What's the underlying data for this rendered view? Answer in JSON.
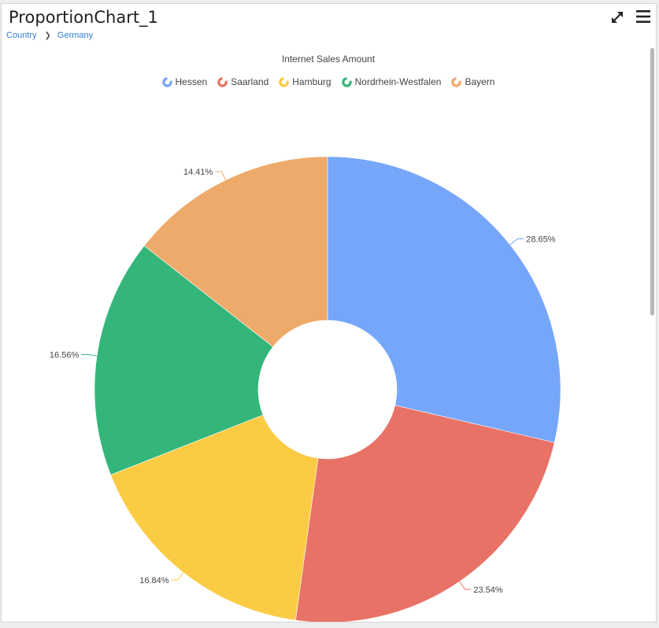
{
  "header": {
    "title": "ProportionChart_1",
    "breadcrumb": [
      "Country",
      "Germany"
    ],
    "expand_icon": "expand-arrows-icon",
    "menu_icon": "hamburger-menu-icon"
  },
  "chart_data": {
    "type": "pie",
    "donut": true,
    "title": "Internet Sales Amount",
    "legend_position": "top-center",
    "categories": [
      "Hessen",
      "Saarland",
      "Hamburg",
      "Nordrhein-Westfalen",
      "Bayern"
    ],
    "values": [
      28.65,
      23.54,
      16.84,
      16.56,
      14.41
    ],
    "labels": [
      "28.65%",
      "23.54%",
      "16.84%",
      "16.56%",
      "14.41%"
    ],
    "colors": [
      "#76a6fa",
      "#e87266",
      "#fbcb43",
      "#34b67a",
      "#eeaa6a"
    ],
    "unit": "%"
  }
}
